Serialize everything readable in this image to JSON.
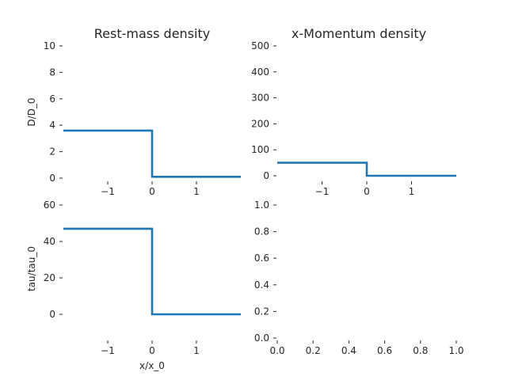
{
  "chart_data": [
    {
      "type": "line",
      "title": "Rest-mass density",
      "xlabel": "",
      "ylabel": "D/D_0",
      "xlim": [
        -2,
        2
      ],
      "ylim": [
        0,
        10
      ],
      "xticks": [
        -1,
        0,
        1
      ],
      "xtick_labels": [
        "−1",
        "0",
        "1"
      ],
      "yticks": [
        0,
        2,
        4,
        6,
        8,
        10
      ],
      "ytick_labels": [
        "0",
        "2",
        "4",
        "6",
        "8",
        "10"
      ],
      "grid": false,
      "color": "#1f77b4",
      "series": [
        {
          "x": [
            -2,
            0,
            0,
            2
          ],
          "y": [
            3.6,
            3.6,
            0.1,
            0.1
          ]
        }
      ]
    },
    {
      "type": "line",
      "title": "x-Momentum density",
      "xlabel": "",
      "ylabel": "",
      "xlim": [
        -2,
        2
      ],
      "ylim": [
        0,
        500
      ],
      "xticks": [
        -1,
        0,
        1
      ],
      "xtick_labels": [
        "−1",
        "0",
        "1"
      ],
      "yticks": [
        0,
        100,
        200,
        300,
        400,
        500
      ],
      "ytick_labels": [
        "0",
        "100",
        "200",
        "300",
        "400",
        "500"
      ],
      "grid": false,
      "color": "#1f77b4",
      "series": [
        {
          "x": [
            -2,
            0,
            0,
            2
          ],
          "y": [
            50,
            50,
            0,
            0
          ]
        }
      ]
    },
    {
      "type": "line",
      "title": "",
      "xlabel": "x/x_0",
      "ylabel": "tau/tau_0",
      "xlim": [
        -2,
        2
      ],
      "ylim": [
        -10,
        60
      ],
      "xticks": [
        -1,
        0,
        1
      ],
      "xtick_labels": [
        "−1",
        "0",
        "1"
      ],
      "yticks": [
        0,
        20,
        40,
        60
      ],
      "ytick_labels": [
        "0",
        "20",
        "40",
        "60"
      ],
      "grid": false,
      "color": "#1f77b4",
      "series": [
        {
          "x": [
            -2,
            0,
            0,
            2
          ],
          "y": [
            47,
            47,
            0,
            0
          ]
        }
      ]
    },
    {
      "type": "line",
      "title": "",
      "xlabel": "",
      "ylabel": "",
      "xlim": [
        0,
        1
      ],
      "ylim": [
        0,
        1
      ],
      "xticks": [
        0,
        0.2,
        0.4,
        0.6,
        0.8,
        1.0
      ],
      "xtick_labels": [
        "0.0",
        "0.2",
        "0.4",
        "0.6",
        "0.8",
        "1.0"
      ],
      "yticks": [
        0,
        0.2,
        0.4,
        0.6,
        0.8,
        1.0
      ],
      "ytick_labels": [
        "0.0",
        "0.2",
        "0.4",
        "0.6",
        "0.8",
        "1.0"
      ],
      "grid": false,
      "color": "#1f77b4",
      "series": []
    }
  ]
}
